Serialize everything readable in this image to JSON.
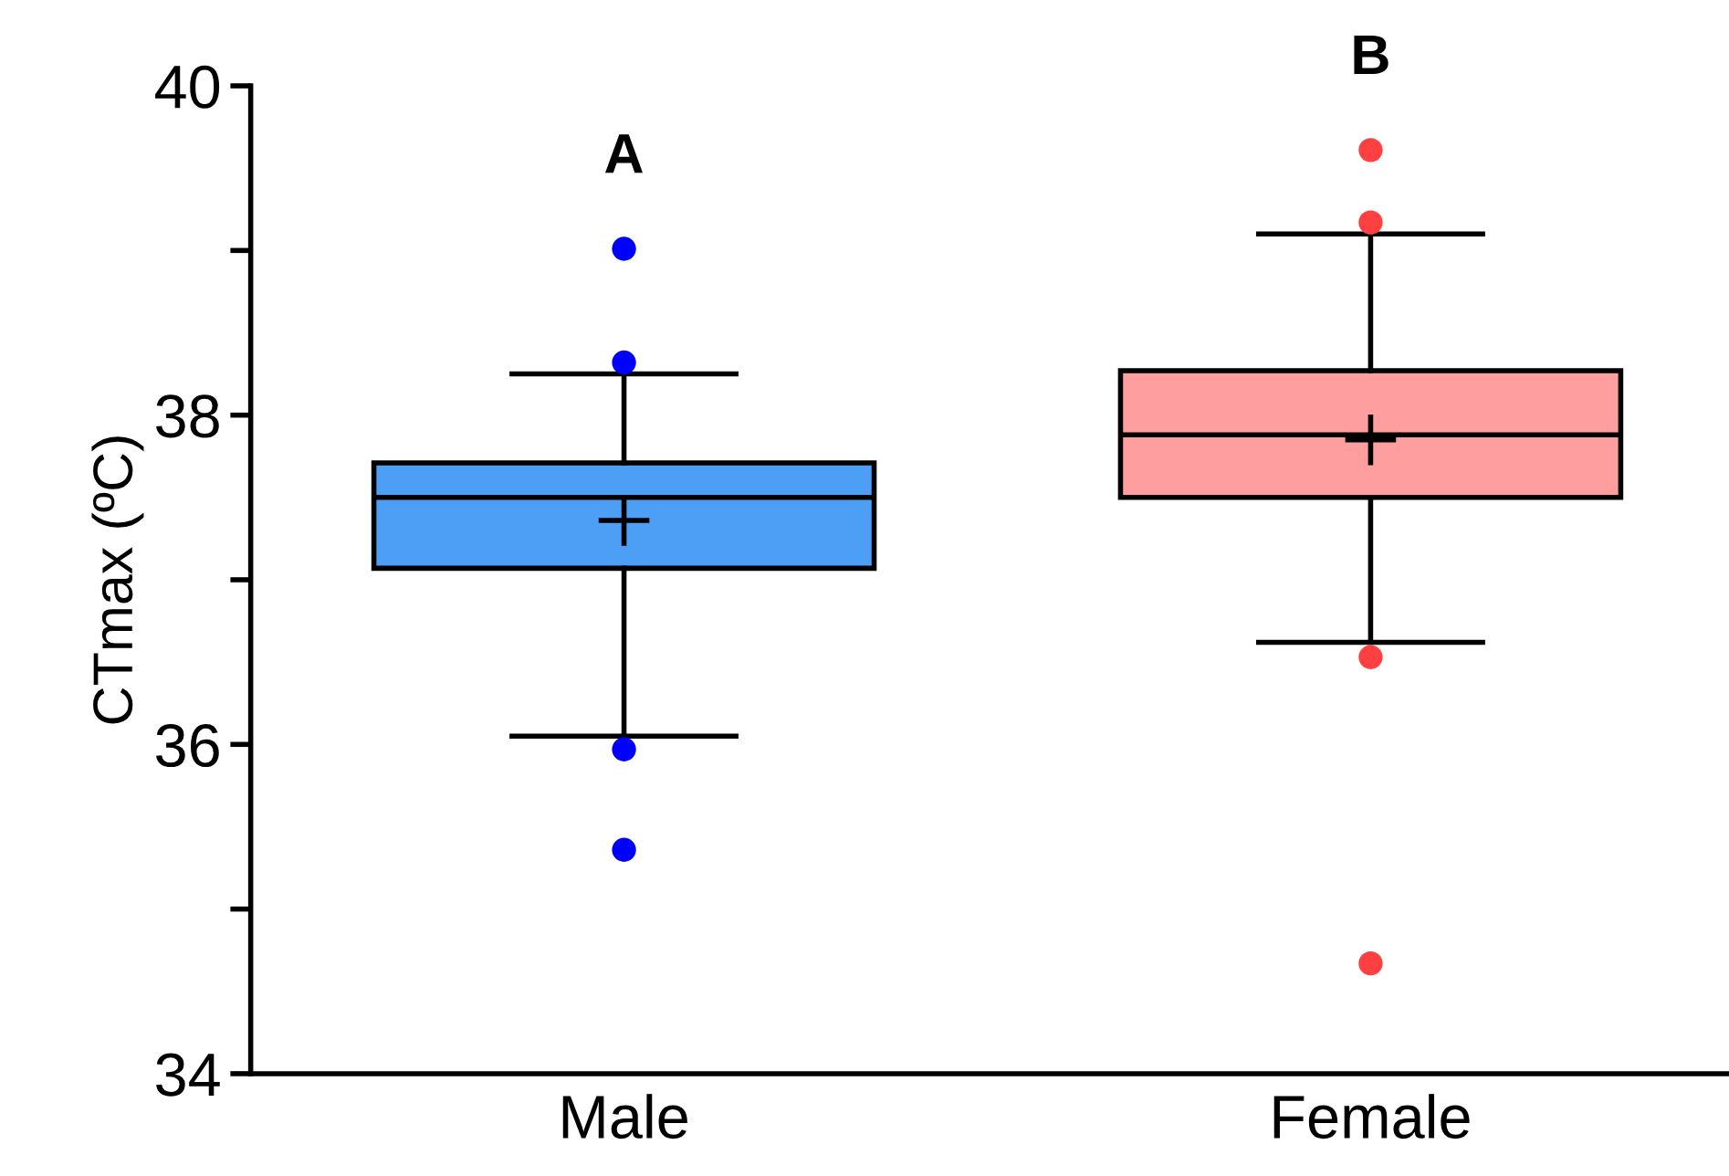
{
  "chart_data": {
    "type": "box",
    "ylabel": "CTmax (ºC)",
    "categories": [
      "Male",
      "Female"
    ],
    "colors": [
      "#4d9ef5",
      "#ff9e9e"
    ],
    "boxes": [
      {
        "low": 36.05,
        "q1": 37.07,
        "median": 37.5,
        "q3": 37.71,
        "high": 38.25,
        "mean": 37.36
      },
      {
        "low": 36.62,
        "q1": 37.5,
        "median": 37.88,
        "q3": 38.27,
        "high": 39.1,
        "mean": 37.85
      }
    ],
    "series": [
      {
        "type": "scatter",
        "x": [
          "Male",
          "Male",
          "Male",
          "Male",
          "Female",
          "Female",
          "Female",
          "Female"
        ],
        "values": [
          39.01,
          38.32,
          35.97,
          35.36,
          39.61,
          39.17,
          36.53,
          34.67
        ],
        "colors": [
          "#0000ff",
          "#0000ff",
          "#0000ff",
          "#0000ff",
          "#ff4040",
          "#ff4040",
          "#ff4040",
          "#ff4040"
        ]
      }
    ],
    "ylim": [
      34,
      40
    ],
    "yticks": [
      34,
      {
        "value": 35,
        "label": null
      },
      36,
      {
        "value": 37,
        "label": null
      },
      38,
      {
        "value": 39,
        "label": null
      },
      40
    ],
    "annotations": [
      "A",
      "B"
    ],
    "grid": false
  }
}
